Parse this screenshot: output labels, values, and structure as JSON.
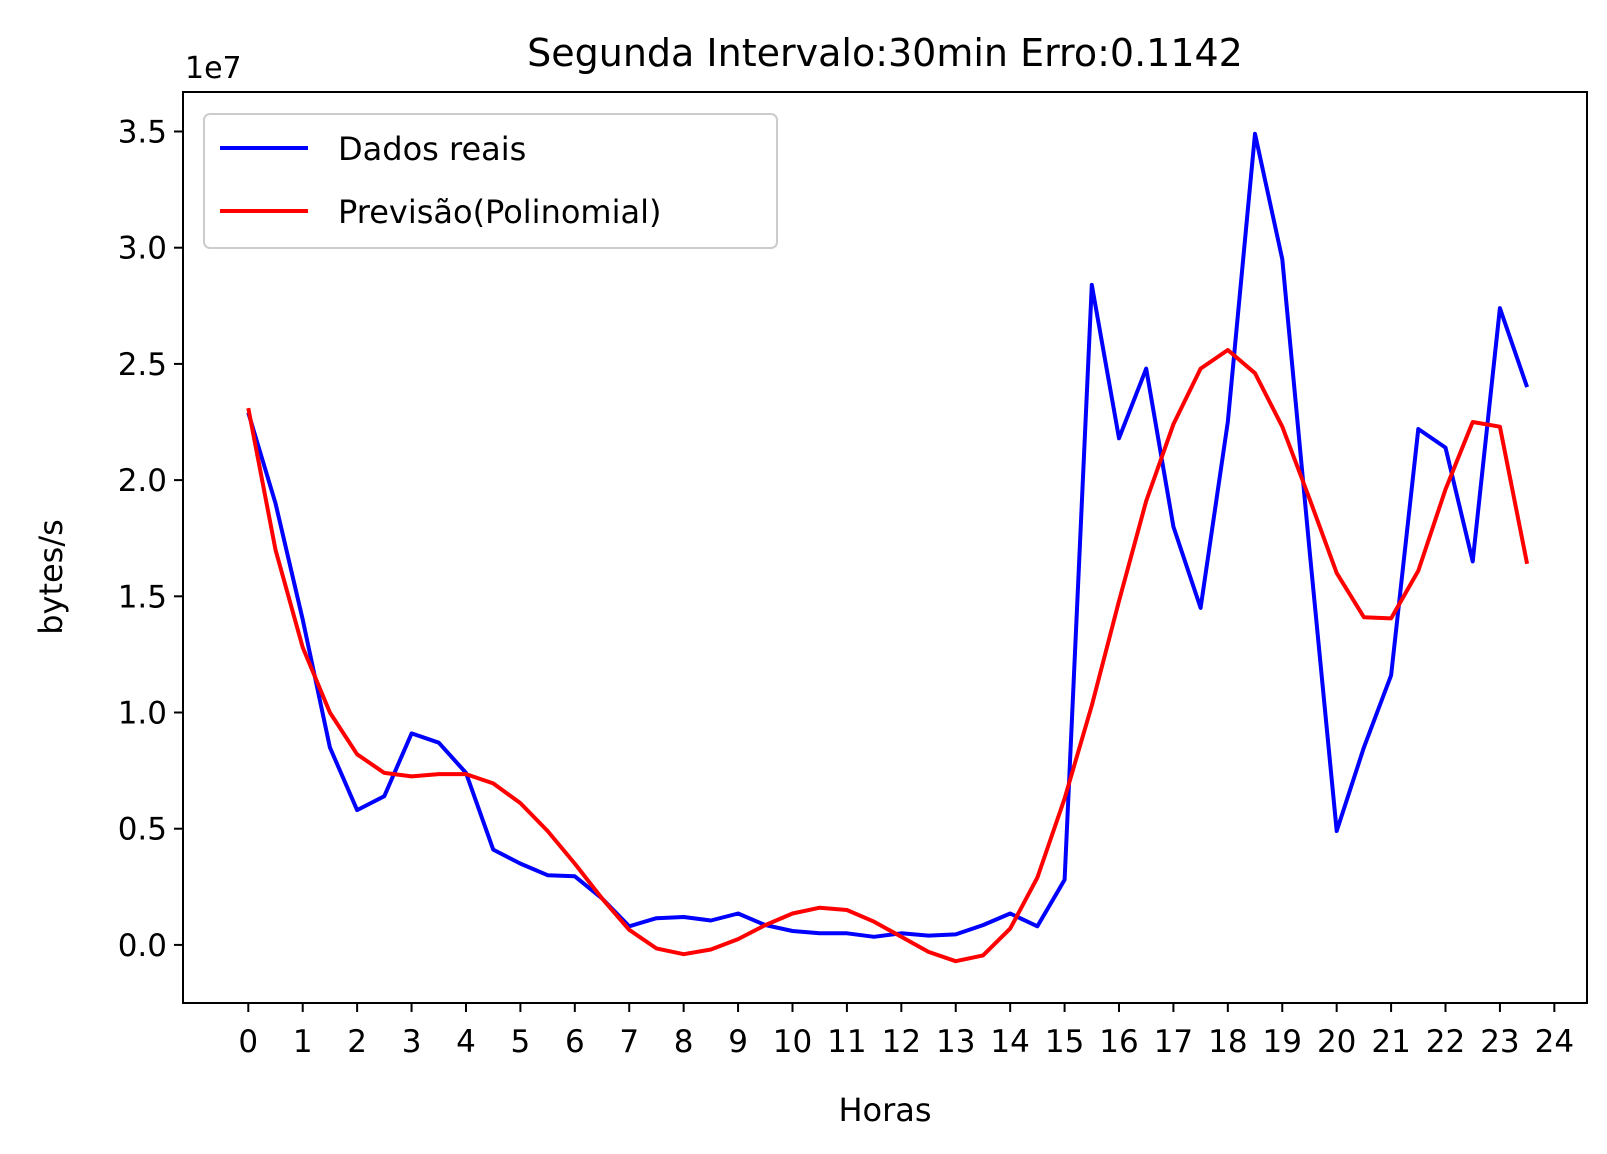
{
  "chart_data": {
    "type": "line",
    "title": "Segunda Intervalo:30min Erro:0.1142",
    "xlabel": "Horas",
    "ylabel": "bytes/s",
    "y_offset_label": "1e7",
    "y_scale_factor": 10000000,
    "xlim": [
      -1.2,
      24.6
    ],
    "ylim": [
      -2500000,
      36700000
    ],
    "x_ticks": [
      0,
      1,
      2,
      3,
      4,
      5,
      6,
      7,
      8,
      9,
      10,
      11,
      12,
      13,
      14,
      15,
      16,
      17,
      18,
      19,
      20,
      21,
      22,
      23,
      24
    ],
    "x_tick_labels": [
      "0",
      "1",
      "2",
      "3",
      "4",
      "5",
      "6",
      "7",
      "8",
      "9",
      "10",
      "11",
      "12",
      "13",
      "14",
      "15",
      "16",
      "17",
      "18",
      "19",
      "20",
      "21",
      "22",
      "23",
      "24"
    ],
    "y_ticks": [
      0,
      5000000,
      10000000,
      15000000,
      20000000,
      25000000,
      30000000,
      35000000
    ],
    "y_tick_labels": [
      "0.0",
      "0.5",
      "1.0",
      "1.5",
      "2.0",
      "2.5",
      "3.0",
      "3.5"
    ],
    "grid": false,
    "legend_position": "top-left",
    "x": [
      0,
      0.5,
      1,
      1.5,
      2,
      2.5,
      3,
      3.5,
      4,
      4.5,
      5,
      5.5,
      6,
      6.5,
      7,
      7.5,
      8,
      8.5,
      9,
      9.5,
      10,
      10.5,
      11,
      11.5,
      12,
      12.5,
      13,
      13.5,
      14,
      14.5,
      15,
      15.5,
      16,
      16.5,
      17,
      17.5,
      18,
      18.5,
      19,
      19.5,
      20,
      20.5,
      21,
      21.5,
      22,
      22.5,
      23,
      23.5
    ],
    "series": [
      {
        "name": "Dados reais",
        "color": "#0000ff",
        "values": [
          22900000,
          19000000,
          14000000,
          8500000,
          5800000,
          6400000,
          9100000,
          8700000,
          7400000,
          4100000,
          3500000,
          3000000,
          2950000,
          2000000,
          800000,
          1150000,
          1200000,
          1050000,
          1350000,
          850000,
          600000,
          500000,
          500000,
          350000,
          500000,
          400000,
          450000,
          850000,
          1350000,
          800000,
          2800000,
          28400000,
          21800000,
          24800000,
          18000000,
          14500000,
          22500000,
          34900000,
          29500000,
          17000000,
          4900000,
          8500000,
          11600000,
          22200000,
          21400000,
          16500000,
          27400000,
          24000000
        ]
      },
      {
        "name": "Previsão(Polinomial)",
        "color": "#ff0000",
        "values": [
          23100000,
          17000000,
          12800000,
          10000000,
          8200000,
          7400000,
          7250000,
          7350000,
          7350000,
          6950000,
          6100000,
          4900000,
          3500000,
          2000000,
          650000,
          -150000,
          -400000,
          -200000,
          250000,
          850000,
          1350000,
          1600000,
          1500000,
          1000000,
          350000,
          -300000,
          -700000,
          -450000,
          700000,
          2900000,
          6300000,
          10300000,
          14800000,
          19100000,
          22400000,
          24800000,
          25600000,
          24600000,
          22300000,
          19200000,
          16000000,
          14100000,
          14050000,
          16100000,
          19600000,
          22500000,
          22300000,
          16400000
        ]
      }
    ]
  }
}
